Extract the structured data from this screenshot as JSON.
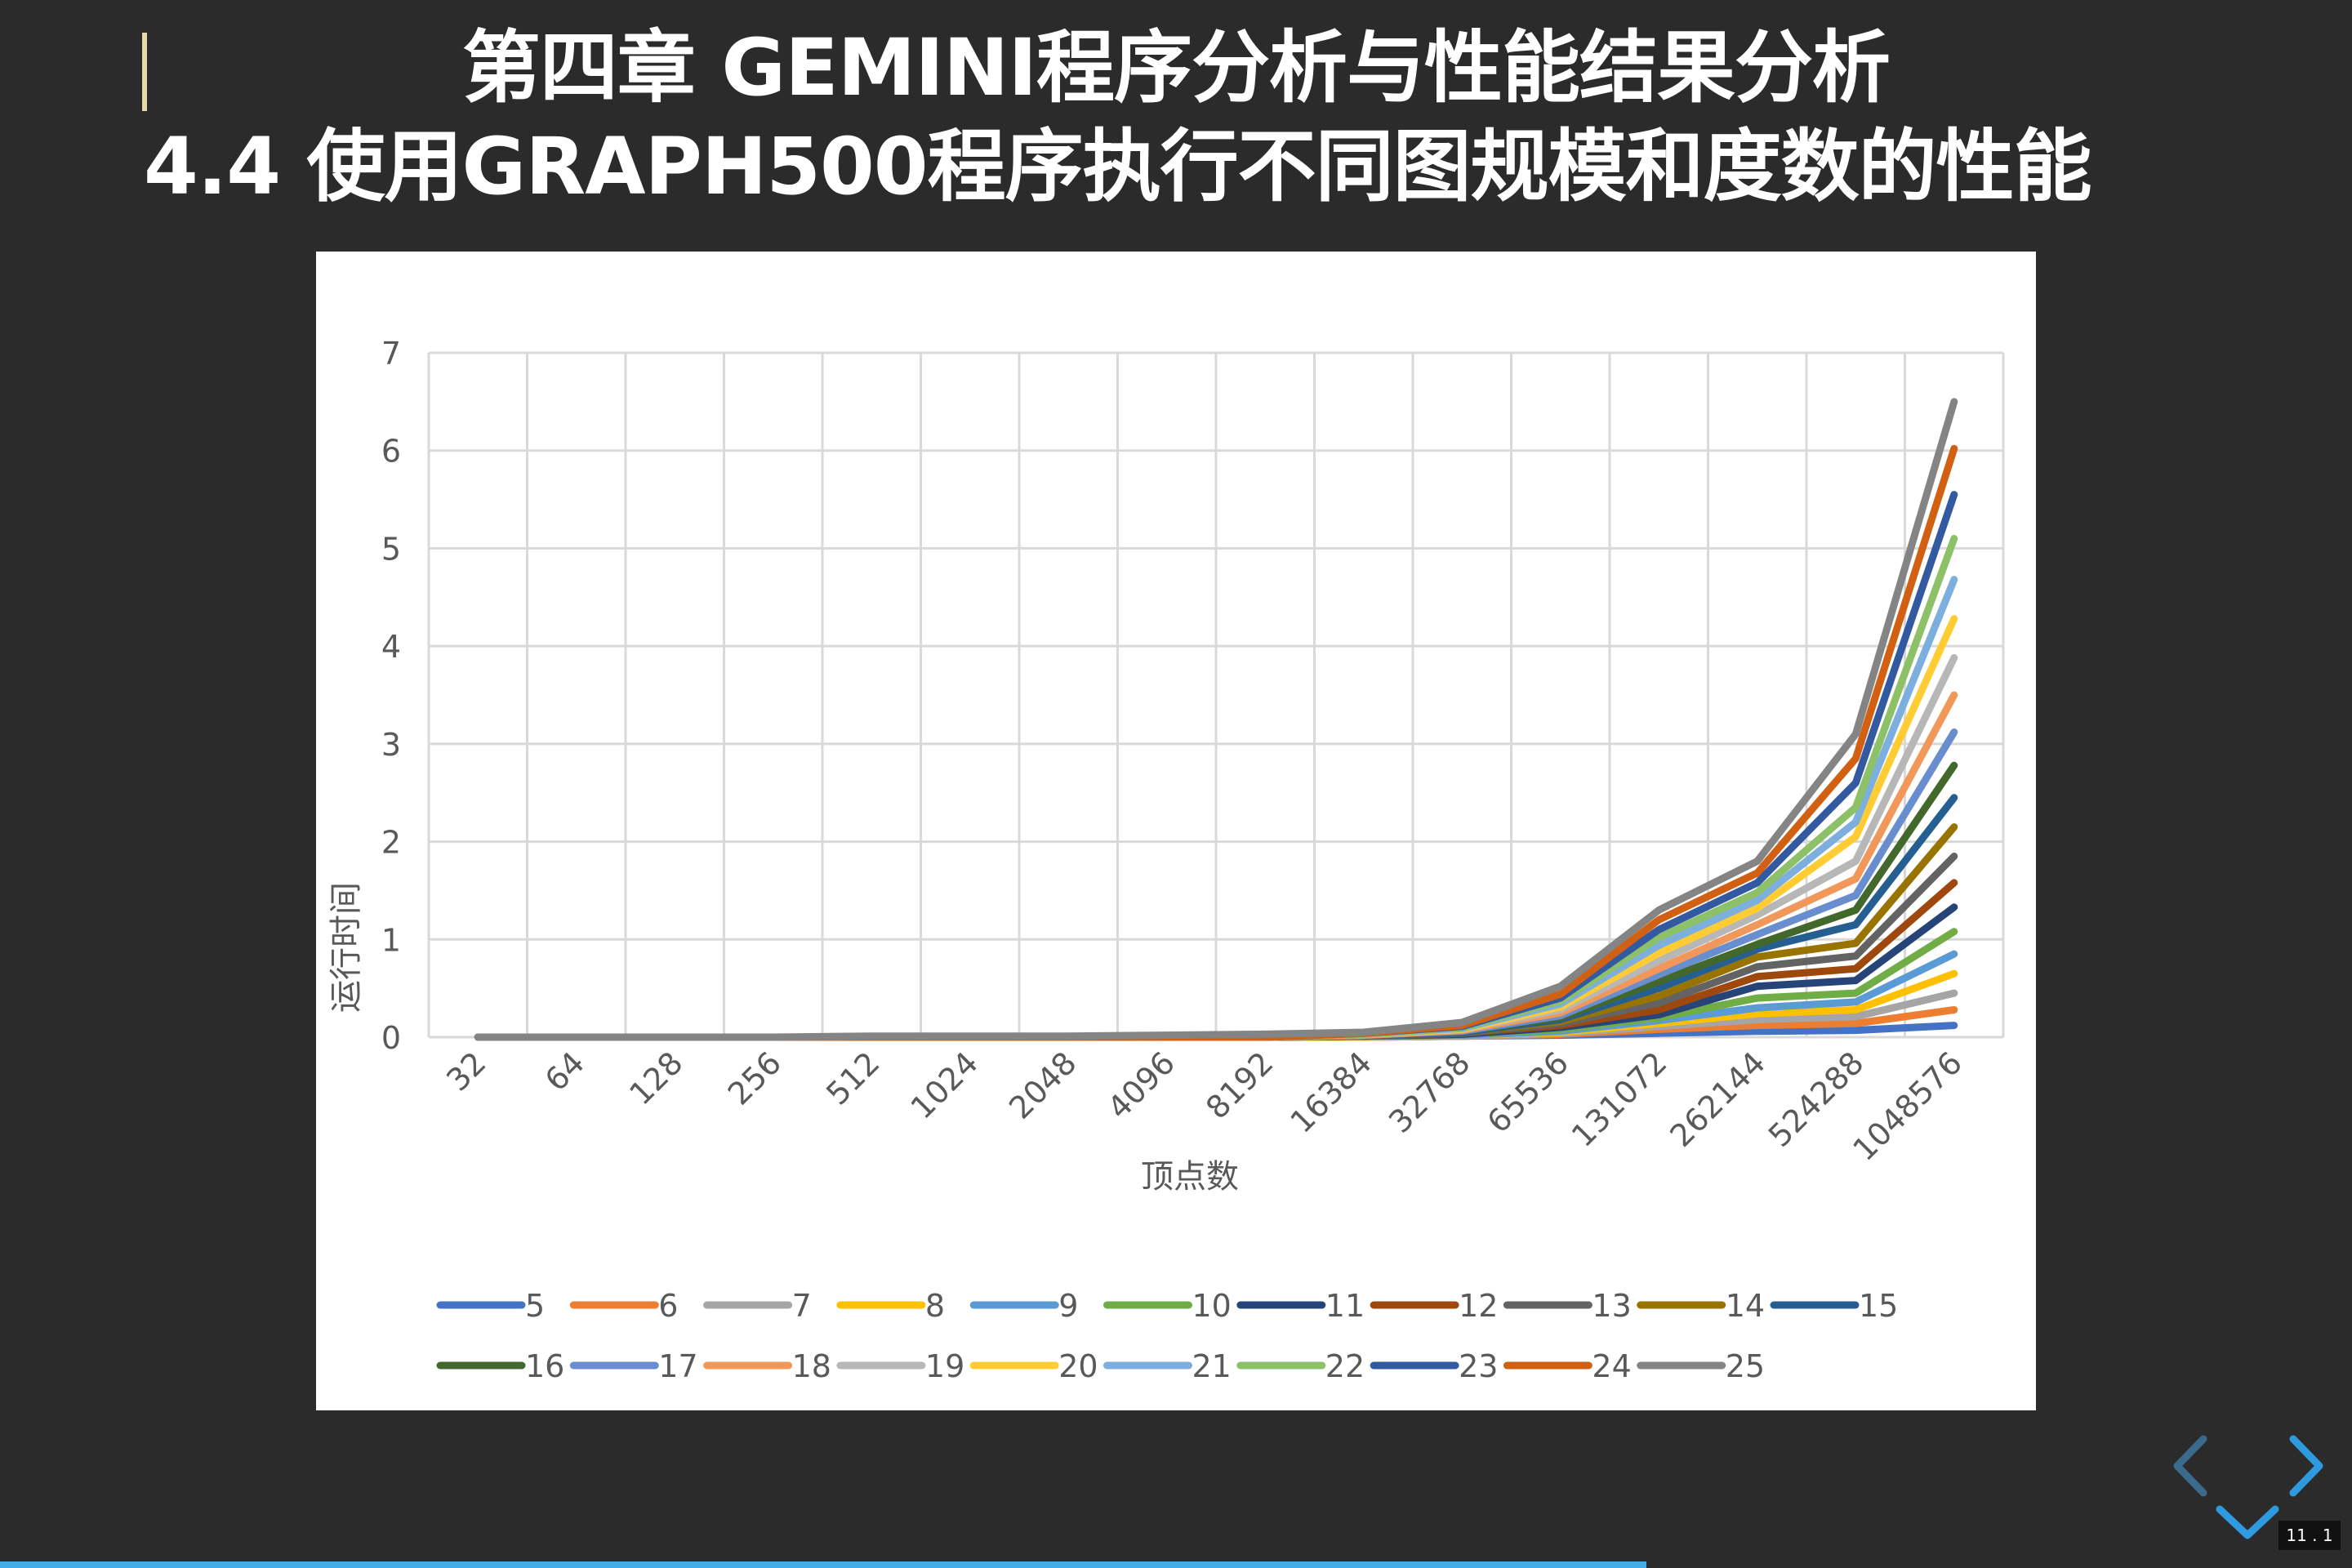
{
  "slide": {
    "chapter_title": "第四章 GEMINI程序分析与性能结果分析",
    "section_title": "4.4 使用GRAPH500程序执行不同图规模和度数的性能",
    "page_number": "11 . 1",
    "progress": 0.7
  },
  "colors": {
    "background": "#2b2b2b",
    "text": "#ffffff",
    "accent_bar": "#e8d9a6",
    "nav_active": "#2e9be0",
    "nav_inactive": "#3a6b8c",
    "progress": "#42aee8"
  },
  "navigation": {
    "prev_icon": "chevron-left-icon",
    "next_icon": "chevron-right-icon",
    "down_icon": "chevron-down-icon"
  },
  "chart_data": {
    "type": "line",
    "title": "",
    "xlabel": "顶点数",
    "ylabel": "运行时间",
    "ylim": [
      0,
      7
    ],
    "yticks": [
      "0",
      "1",
      "2",
      "3",
      "4",
      "5",
      "6",
      "7"
    ],
    "grid": true,
    "legend_position": "bottom",
    "categories": [
      "32",
      "64",
      "128",
      "256",
      "512",
      "1024",
      "2048",
      "4096",
      "8192",
      "16384",
      "32768",
      "65536",
      "131072",
      "262144",
      "524288",
      "1048576"
    ],
    "series": [
      {
        "name": "5",
        "color": "#4472c4",
        "values": [
          0,
          0,
          0,
          0,
          0,
          0,
          0,
          0,
          0,
          0,
          0.01,
          0.02,
          0.04,
          0.06,
          0.07,
          0.12
        ]
      },
      {
        "name": "6",
        "color": "#ed7d31",
        "values": [
          0,
          0,
          0,
          0,
          0,
          0,
          0,
          0,
          0,
          0,
          0.01,
          0.03,
          0.08,
          0.12,
          0.14,
          0.28
        ]
      },
      {
        "name": "7",
        "color": "#a5a5a5",
        "values": [
          0,
          0,
          0,
          0,
          0,
          0,
          0,
          0,
          0,
          0,
          0.01,
          0.04,
          0.11,
          0.18,
          0.21,
          0.45
        ]
      },
      {
        "name": "8",
        "color": "#ffc000",
        "values": [
          0,
          0,
          0,
          0,
          0,
          0,
          0,
          0,
          0,
          0,
          0.02,
          0.05,
          0.14,
          0.24,
          0.28,
          0.65
        ]
      },
      {
        "name": "9",
        "color": "#5b9bd5",
        "values": [
          0,
          0,
          0,
          0,
          0,
          0,
          0,
          0,
          0,
          0.01,
          0.02,
          0.06,
          0.17,
          0.3,
          0.36,
          0.85
        ]
      },
      {
        "name": "10",
        "color": "#70ad47",
        "values": [
          0,
          0,
          0,
          0,
          0,
          0,
          0,
          0,
          0,
          0.01,
          0.03,
          0.08,
          0.2,
          0.4,
          0.45,
          1.08
        ]
      },
      {
        "name": "11",
        "color": "#264478",
        "values": [
          0,
          0,
          0,
          0,
          0,
          0,
          0,
          0,
          0,
          0.01,
          0.03,
          0.1,
          0.23,
          0.52,
          0.58,
          1.33
        ]
      },
      {
        "name": "12",
        "color": "#9e480e",
        "values": [
          0,
          0,
          0,
          0,
          0,
          0,
          0,
          0,
          0,
          0.01,
          0.04,
          0.12,
          0.28,
          0.62,
          0.7,
          1.58
        ]
      },
      {
        "name": "13",
        "color": "#636363",
        "values": [
          0,
          0,
          0,
          0,
          0,
          0,
          0,
          0,
          0,
          0.01,
          0.04,
          0.14,
          0.35,
          0.72,
          0.83,
          1.85
        ]
      },
      {
        "name": "14",
        "color": "#997300",
        "values": [
          0,
          0,
          0,
          0,
          0,
          0,
          0,
          0,
          0,
          0.02,
          0.05,
          0.16,
          0.42,
          0.82,
          0.96,
          2.15
        ]
      },
      {
        "name": "15",
        "color": "#255e91",
        "values": [
          0,
          0,
          0,
          0,
          0,
          0,
          0,
          0,
          0,
          0.02,
          0.05,
          0.18,
          0.5,
          0.9,
          1.15,
          2.45
        ]
      },
      {
        "name": "16",
        "color": "#43682b",
        "values": [
          0,
          0,
          0,
          0,
          0,
          0,
          0,
          0,
          0,
          0.02,
          0.06,
          0.2,
          0.57,
          0.95,
          1.3,
          2.78
        ]
      },
      {
        "name": "17",
        "color": "#698ed0",
        "values": [
          0,
          0,
          0,
          0,
          0,
          0,
          0,
          0,
          0,
          0.02,
          0.06,
          0.22,
          0.64,
          1.05,
          1.45,
          3.12
        ]
      },
      {
        "name": "18",
        "color": "#f1975a",
        "values": [
          0,
          0,
          0,
          0,
          0,
          0,
          0,
          0,
          0,
          0.02,
          0.07,
          0.25,
          0.7,
          1.15,
          1.62,
          3.5
        ]
      },
      {
        "name": "19",
        "color": "#b7b7b7",
        "values": [
          0,
          0,
          0,
          0,
          0,
          0,
          0,
          0,
          0,
          0.03,
          0.08,
          0.28,
          0.78,
          1.25,
          1.8,
          3.88
        ]
      },
      {
        "name": "20",
        "color": "#ffcd33",
        "values": [
          0,
          0,
          0,
          0,
          0,
          0,
          0,
          0,
          0,
          0.03,
          0.08,
          0.31,
          0.86,
          1.32,
          2.05,
          4.28
        ]
      },
      {
        "name": "21",
        "color": "#7cafdd",
        "values": [
          0,
          0,
          0,
          0,
          0,
          0,
          0,
          0,
          0,
          0.03,
          0.09,
          0.34,
          0.94,
          1.4,
          2.2,
          4.68
        ]
      },
      {
        "name": "22",
        "color": "#8cc168",
        "values": [
          0,
          0,
          0,
          0,
          0,
          0,
          0,
          0,
          0,
          0.03,
          0.1,
          0.37,
          1.02,
          1.48,
          2.35,
          5.1
        ]
      },
      {
        "name": "23",
        "color": "#335aa1",
        "values": [
          0,
          0,
          0,
          0,
          0,
          0,
          0,
          0,
          0,
          0.04,
          0.11,
          0.4,
          1.1,
          1.58,
          2.6,
          5.55
        ]
      },
      {
        "name": "24",
        "color": "#d26012",
        "values": [
          0,
          0,
          0,
          0,
          0,
          0,
          0,
          0,
          0,
          0.04,
          0.12,
          0.44,
          1.2,
          1.68,
          2.85,
          6.02
        ]
      },
      {
        "name": "25",
        "color": "#848484",
        "values": [
          0,
          0,
          0,
          0,
          0.01,
          0.01,
          0.01,
          0.02,
          0.03,
          0.05,
          0.15,
          0.52,
          1.3,
          1.8,
          3.1,
          6.5
        ]
      }
    ]
  }
}
